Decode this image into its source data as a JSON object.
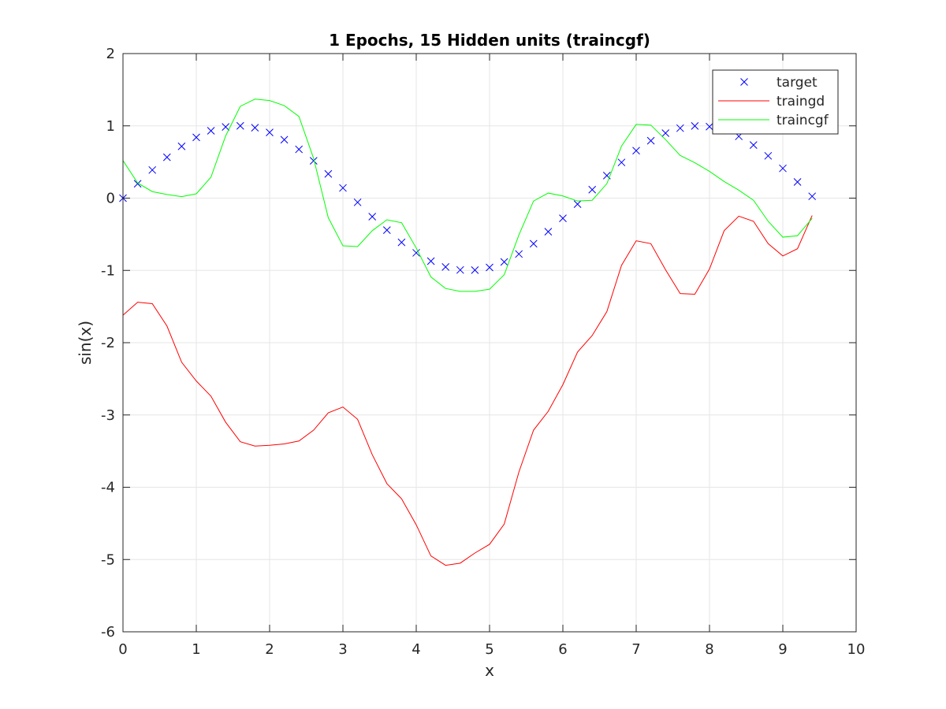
{
  "chart_data": {
    "type": "line",
    "title": "1 Epochs, 15 Hidden units (traincgf)",
    "xlabel": "x",
    "ylabel": "sin(x)",
    "xlim": [
      0,
      10
    ],
    "ylim": [
      -6,
      2
    ],
    "xticks": [
      0,
      1,
      2,
      3,
      4,
      5,
      6,
      7,
      8,
      9,
      10
    ],
    "yticks": [
      -6,
      -5,
      -4,
      -3,
      -2,
      -1,
      0,
      1,
      2
    ],
    "xtick_labels": [
      "0",
      "1",
      "2",
      "3",
      "4",
      "5",
      "6",
      "7",
      "8",
      "9",
      "10"
    ],
    "ytick_labels": [
      "-6",
      "-5",
      "-4",
      "-3",
      "-2",
      "-1",
      "0",
      "1",
      "2"
    ],
    "grid": true,
    "legend_position": "top-right",
    "x": [
      0,
      0.2,
      0.4,
      0.6,
      0.8,
      1.0,
      1.2,
      1.4,
      1.6,
      1.8,
      2.0,
      2.2,
      2.4,
      2.6,
      2.8,
      3.0,
      3.2,
      3.4,
      3.6,
      3.8,
      4.0,
      4.2,
      4.4,
      4.6,
      4.8,
      5.0,
      5.2,
      5.4,
      5.6,
      5.8,
      6.0,
      6.2,
      6.4,
      6.6,
      6.8,
      7.0,
      7.2,
      7.4,
      7.6,
      7.8,
      8.0,
      8.2,
      8.4,
      8.6,
      8.8,
      9.0,
      9.2,
      9.4
    ],
    "series": [
      {
        "name": "target",
        "style": "marker-x",
        "color": "#0000ff",
        "values": [
          0.0,
          0.199,
          0.389,
          0.565,
          0.717,
          0.841,
          0.932,
          0.985,
          1.0,
          0.974,
          0.909,
          0.808,
          0.675,
          0.516,
          0.335,
          0.141,
          -0.058,
          -0.256,
          -0.443,
          -0.612,
          -0.757,
          -0.872,
          -0.952,
          -0.994,
          -0.996,
          -0.959,
          -0.883,
          -0.773,
          -0.631,
          -0.465,
          -0.279,
          -0.083,
          0.117,
          0.312,
          0.494,
          0.657,
          0.794,
          0.899,
          0.968,
          0.999,
          0.989,
          0.941,
          0.855,
          0.734,
          0.585,
          0.412,
          0.223,
          0.025
        ]
      },
      {
        "name": "traingd",
        "style": "line",
        "color": "#ff0000",
        "values": [
          -1.62,
          -1.44,
          -1.46,
          -1.77,
          -2.27,
          -2.53,
          -2.74,
          -3.1,
          -3.37,
          -3.43,
          -3.42,
          -3.4,
          -3.36,
          -3.21,
          -2.97,
          -2.89,
          -3.06,
          -3.55,
          -3.95,
          -4.16,
          -4.52,
          -4.95,
          -5.08,
          -5.05,
          -4.91,
          -4.79,
          -4.51,
          -3.79,
          -3.21,
          -2.95,
          -2.58,
          -2.13,
          -1.9,
          -1.57,
          -0.93,
          -0.59,
          -0.63,
          -0.99,
          -1.32,
          -1.33,
          -0.98,
          -0.45,
          -0.25,
          -0.32,
          -0.63,
          -0.8,
          -0.7,
          -0.24
        ]
      },
      {
        "name": "traincgf",
        "style": "line",
        "color": "#00ff00",
        "values": [
          0.52,
          0.21,
          0.09,
          0.05,
          0.02,
          0.06,
          0.29,
          0.86,
          1.27,
          1.37,
          1.35,
          1.28,
          1.13,
          0.55,
          -0.27,
          -0.66,
          -0.67,
          -0.45,
          -0.3,
          -0.34,
          -0.69,
          -1.09,
          -1.25,
          -1.29,
          -1.29,
          -1.26,
          -1.06,
          -0.51,
          -0.04,
          0.07,
          0.03,
          -0.04,
          -0.03,
          0.2,
          0.72,
          1.02,
          1.01,
          0.81,
          0.59,
          0.49,
          0.37,
          0.23,
          0.11,
          -0.03,
          -0.32,
          -0.54,
          -0.52,
          -0.28
        ]
      }
    ]
  }
}
